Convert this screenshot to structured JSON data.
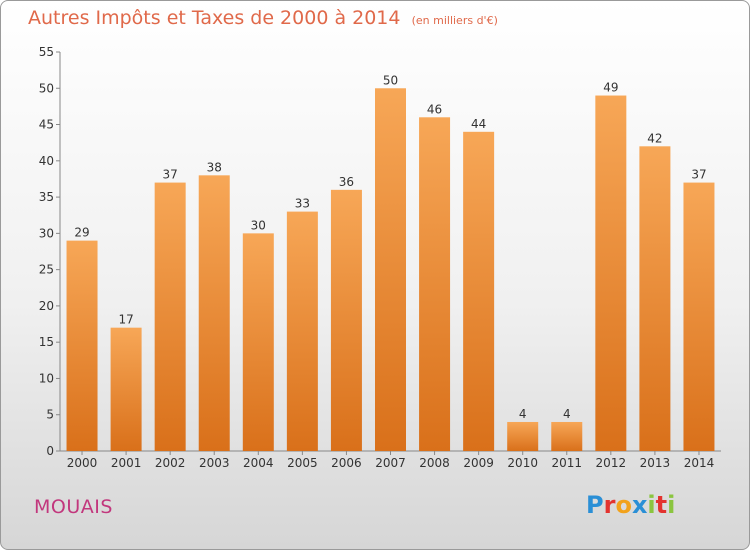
{
  "title": "Autres Impôts et Taxes de 2000 à 2014",
  "unit": "(en milliers d'€)",
  "commune": "MOUAIS",
  "brand": {
    "letters": [
      "P",
      "r",
      "o",
      "x",
      "i",
      "t",
      "i"
    ],
    "colors": [
      "#2a8fd6",
      "#e3332f",
      "#f2a21b",
      "#2a8fd6",
      "#8bc53f",
      "#e3332f",
      "#8bc53f"
    ]
  },
  "colors": {
    "bar_light": "#f7a757",
    "bar_dark": "#d9701a",
    "title": "#e0694a",
    "commune": "#c2377d"
  },
  "chart_data": {
    "type": "bar",
    "categories": [
      "2000",
      "2001",
      "2002",
      "2003",
      "2004",
      "2005",
      "2006",
      "2007",
      "2008",
      "2009",
      "2010",
      "2011",
      "2012",
      "2013",
      "2014"
    ],
    "values": [
      29,
      17,
      37,
      38,
      30,
      33,
      36,
      50,
      46,
      44,
      4,
      4,
      49,
      42,
      37
    ],
    "title": "Autres Impôts et Taxes de 2000 à 2014",
    "xlabel": "",
    "ylabel": "",
    "ylim": [
      0,
      55
    ],
    "yticks": [
      0,
      5,
      10,
      15,
      20,
      25,
      30,
      35,
      40,
      45,
      50,
      55
    ],
    "grid": false,
    "data_labels": true
  }
}
